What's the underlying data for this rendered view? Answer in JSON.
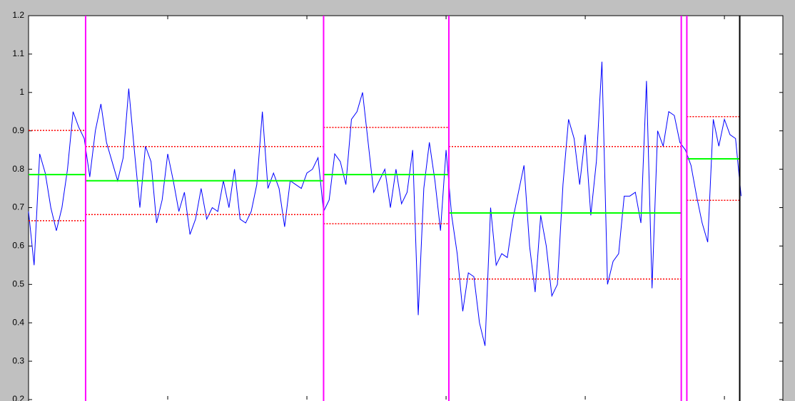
{
  "chart_data": {
    "type": "line",
    "x": [
      0,
      4,
      8,
      12,
      16,
      20,
      24,
      28,
      32,
      36,
      40,
      44,
      48,
      52,
      56,
      60,
      64,
      68,
      72,
      76,
      80,
      84,
      88,
      92,
      96,
      100,
      104,
      108,
      112,
      116,
      120,
      124,
      128,
      132,
      136,
      140,
      144,
      148,
      152,
      156,
      160,
      164,
      168,
      172,
      176,
      180,
      184,
      188,
      192,
      196,
      200,
      204,
      208,
      212,
      216,
      220,
      224,
      228,
      232,
      236,
      240,
      244,
      248,
      252,
      256,
      260,
      264,
      268,
      272,
      276,
      280,
      284,
      288,
      292,
      296,
      300,
      304,
      308,
      312,
      316,
      320,
      324,
      328,
      332,
      336,
      340,
      344,
      348,
      352,
      356,
      360,
      364,
      368,
      372,
      376,
      380,
      384,
      388,
      392,
      396,
      400,
      404,
      408,
      412,
      416,
      420,
      424,
      428,
      432,
      436,
      440,
      444,
      448,
      452,
      456,
      460,
      464,
      468,
      472,
      476,
      480,
      484,
      488,
      492,
      496,
      500,
      504,
      508,
      512
    ],
    "series": [
      {
        "color": "#0000ff",
        "values": [
          0.69,
          0.55,
          0.84,
          0.79,
          0.7,
          0.64,
          0.7,
          0.8,
          0.95,
          0.91,
          0.88,
          0.78,
          0.9,
          0.97,
          0.87,
          0.82,
          0.77,
          0.83,
          1.01,
          0.85,
          0.7,
          0.86,
          0.82,
          0.66,
          0.72,
          0.84,
          0.77,
          0.69,
          0.74,
          0.63,
          0.67,
          0.75,
          0.67,
          0.7,
          0.69,
          0.77,
          0.7,
          0.8,
          0.67,
          0.66,
          0.69,
          0.76,
          0.95,
          0.75,
          0.79,
          0.75,
          0.65,
          0.77,
          0.76,
          0.75,
          0.79,
          0.8,
          0.83,
          0.69,
          0.72,
          0.84,
          0.82,
          0.76,
          0.93,
          0.95,
          1.0,
          0.87,
          0.74,
          0.77,
          0.8,
          0.7,
          0.8,
          0.71,
          0.74,
          0.85,
          0.42,
          0.75,
          0.87,
          0.77,
          0.64,
          0.85,
          0.68,
          0.58,
          0.43,
          0.53,
          0.52,
          0.4,
          0.34,
          0.7,
          0.55,
          0.58,
          0.57,
          0.67,
          0.74,
          0.81,
          0.6,
          0.48,
          0.68,
          0.6,
          0.47,
          0.5,
          0.76,
          0.93,
          0.88,
          0.76,
          0.89,
          0.68,
          0.82,
          1.08,
          0.5,
          0.56,
          0.58,
          0.73,
          0.73,
          0.74,
          0.66,
          1.03,
          0.49,
          0.9,
          0.86,
          0.95,
          0.94,
          0.87,
          0.85,
          0.81,
          0.73,
          0.66,
          0.61,
          0.93,
          0.86,
          0.93,
          0.89,
          0.88,
          0.73
        ]
      }
    ],
    "segment_means": {
      "color": "#00ff00",
      "starts": [
        0,
        41,
        212,
        302,
        473
      ],
      "ends": [
        41,
        212,
        302,
        469,
        511
      ],
      "values": [
        0.786,
        0.77,
        0.786,
        0.686,
        0.827
      ]
    },
    "upper_bounds": {
      "color": "#ff0000",
      "values": [
        0.901,
        0.859,
        0.909,
        0.859,
        0.937
      ]
    },
    "lower_bounds": {
      "color": "#ff0000",
      "values": [
        0.666,
        0.682,
        0.658,
        0.514,
        0.719
      ]
    },
    "changepoints": {
      "color": "#ff00ff",
      "x": [
        41,
        212,
        302,
        469,
        473
      ]
    },
    "end_line": {
      "color": "#000000",
      "x": 511
    },
    "xlim": [
      0,
      542
    ],
    "xticks": [
      100,
      200,
      300,
      400,
      500
    ],
    "ylim": [
      0.2,
      1.2
    ],
    "yticks": [
      0.2,
      0.3,
      0.4,
      0.5,
      0.6,
      0.7,
      0.8,
      0.9,
      1,
      1.1,
      1.2
    ]
  }
}
